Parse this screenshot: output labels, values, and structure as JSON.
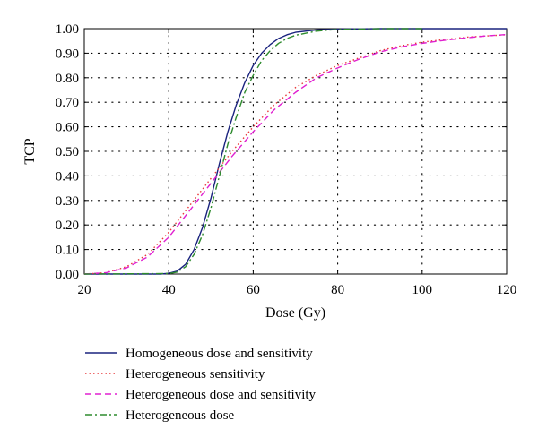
{
  "chart_data": {
    "type": "line",
    "title": "",
    "xlabel": "Dose (Gy)",
    "ylabel": "TCP",
    "xlim": [
      20,
      120
    ],
    "ylim": [
      0,
      1
    ],
    "x_ticks": [
      "20",
      "40",
      "60",
      "80",
      "100",
      "120"
    ],
    "y_ticks": [
      "0.00",
      "0.10",
      "0.20",
      "0.30",
      "0.40",
      "0.50",
      "0.60",
      "0.70",
      "0.80",
      "0.90",
      "1.00"
    ],
    "grid": "dotted",
    "legend_position": "below plot",
    "series": [
      {
        "name": "Homogeneous dose and sensitivity",
        "color": "#1a237e",
        "style": "solid",
        "x": [
          20,
          38,
          40,
          42,
          44,
          46,
          48,
          50,
          52,
          54,
          56,
          58,
          60,
          62,
          64,
          66,
          68,
          70,
          75,
          80,
          90,
          100,
          120
        ],
        "y": [
          0.0,
          0.0,
          0.003,
          0.012,
          0.04,
          0.1,
          0.19,
          0.31,
          0.45,
          0.58,
          0.69,
          0.78,
          0.85,
          0.9,
          0.935,
          0.96,
          0.975,
          0.985,
          0.995,
          0.998,
          1.0,
          1.0,
          1.0
        ]
      },
      {
        "name": "Heterogeneous sensitivity",
        "color": "#e8393a",
        "style": "dotted",
        "x": [
          20,
          25,
          30,
          35,
          40,
          45,
          50,
          55,
          60,
          65,
          70,
          75,
          80,
          85,
          90,
          95,
          100,
          105,
          110,
          115,
          120
        ],
        "y": [
          0.0,
          0.005,
          0.03,
          0.08,
          0.17,
          0.28,
          0.39,
          0.5,
          0.6,
          0.69,
          0.76,
          0.81,
          0.85,
          0.88,
          0.91,
          0.93,
          0.945,
          0.955,
          0.965,
          0.97,
          0.975
        ]
      },
      {
        "name": "Heterogeneous dose and sensitivity",
        "color": "#e020d0",
        "style": "dashed",
        "x": [
          20,
          25,
          30,
          35,
          40,
          45,
          50,
          55,
          60,
          65,
          70,
          75,
          80,
          85,
          90,
          95,
          100,
          105,
          110,
          115,
          120
        ],
        "y": [
          0.0,
          0.005,
          0.025,
          0.07,
          0.15,
          0.26,
          0.37,
          0.48,
          0.58,
          0.67,
          0.74,
          0.8,
          0.84,
          0.875,
          0.905,
          0.925,
          0.94,
          0.952,
          0.962,
          0.97,
          0.976
        ]
      },
      {
        "name": "Heterogeneous dose",
        "color": "#2e8b2e",
        "style": "dashdot",
        "x": [
          20,
          40,
          42,
          44,
          46,
          48,
          50,
          52,
          54,
          56,
          58,
          60,
          62,
          64,
          66,
          68,
          70,
          75,
          80,
          90,
          100
        ],
        "y": [
          0.0,
          0.002,
          0.008,
          0.03,
          0.08,
          0.16,
          0.27,
          0.4,
          0.53,
          0.64,
          0.74,
          0.81,
          0.87,
          0.91,
          0.94,
          0.96,
          0.973,
          0.99,
          0.997,
          1.0,
          1.0
        ]
      }
    ]
  }
}
